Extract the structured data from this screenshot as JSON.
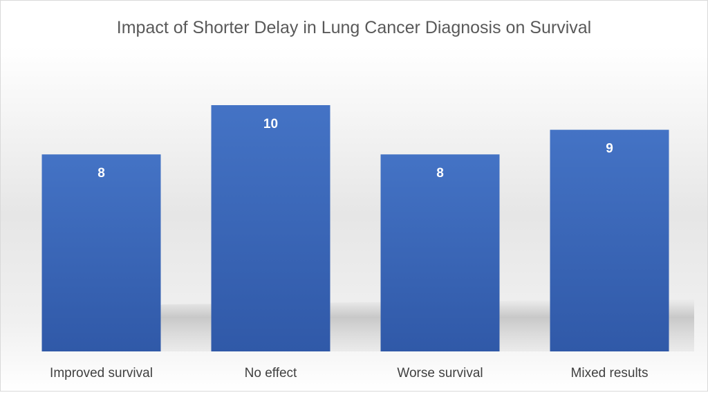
{
  "chart_data": {
    "type": "bar",
    "title": "Impact of Shorter Delay in Lung Cancer Diagnosis on Survival",
    "categories": [
      "Improved survival",
      "No effect",
      "Worse survival",
      "Mixed results"
    ],
    "values": [
      8,
      10,
      8,
      9
    ],
    "data_labels": [
      "8",
      "10",
      "8",
      "9"
    ],
    "xlabel": "",
    "ylabel": "",
    "ylim": [
      0,
      10
    ],
    "grid": false,
    "legend": "none"
  },
  "colors": {
    "bar_top": "#4473C5",
    "bar_bottom": "#3059A8",
    "title": "#595959",
    "category_label": "#404040",
    "data_label": "#ffffff",
    "border": "#D9D9D9",
    "background_top": "#ffffff",
    "background_band": "#DCDCDC",
    "shadow": "#B8B8B8"
  }
}
